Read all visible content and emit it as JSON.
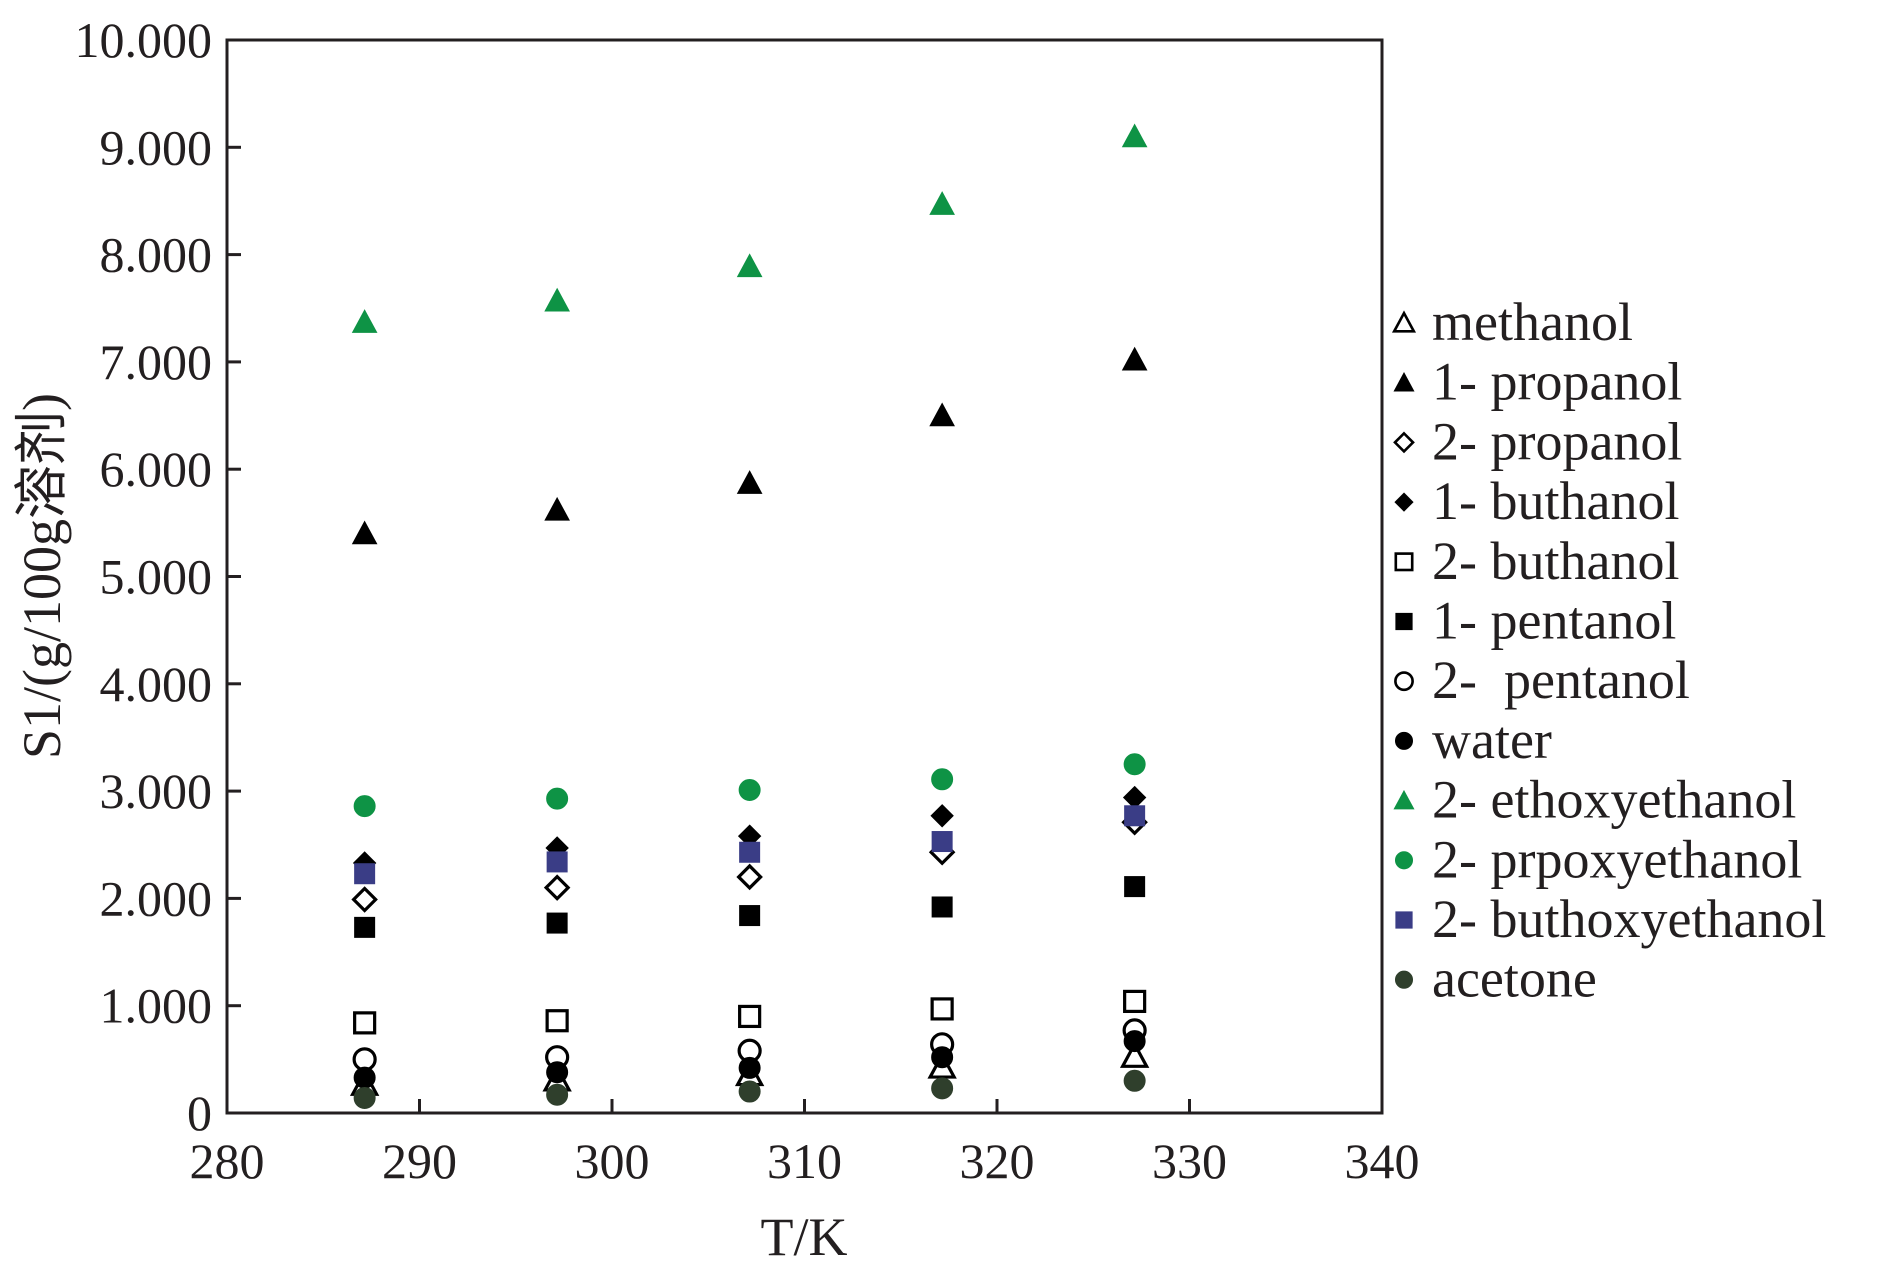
{
  "chart_data": {
    "type": "scatter",
    "xlabel": "T/K",
    "ylabel": "S1/(g/100g溶剂)",
    "xlim": [
      280,
      340
    ],
    "ylim": [
      0,
      10
    ],
    "x_ticks": [
      "280",
      "290",
      "300",
      "310",
      "320",
      "330",
      "340"
    ],
    "y_ticks": [
      "0",
      "1.000",
      "2.000",
      "3.000",
      "4.000",
      "5.000",
      "6.000",
      "7.000",
      "8.000",
      "9.000",
      "10.000"
    ],
    "x": [
      287.15,
      297.15,
      307.15,
      317.15,
      327.15
    ],
    "legend_position": "right",
    "series": [
      {
        "name": "methanol",
        "marker": "triangle-open",
        "color": "#000000",
        "values": [
          0.27,
          0.31,
          0.36,
          0.43,
          0.53
        ]
      },
      {
        "name": "1- propanol",
        "marker": "triangle-filled",
        "color": "#000000",
        "values": [
          5.4,
          5.62,
          5.87,
          6.5,
          7.02
        ]
      },
      {
        "name": "2- propanol",
        "marker": "diamond-open",
        "color": "#000000",
        "values": [
          1.99,
          2.1,
          2.2,
          2.43,
          2.71
        ]
      },
      {
        "name": "1- buthanol",
        "marker": "diamond-filled",
        "color": "#000000",
        "values": [
          2.33,
          2.47,
          2.58,
          2.77,
          2.94
        ]
      },
      {
        "name": "2- buthanol",
        "marker": "square-open",
        "color": "#000000",
        "values": [
          0.84,
          0.86,
          0.9,
          0.97,
          1.04
        ]
      },
      {
        "name": "1- pentanol",
        "marker": "square-filled",
        "color": "#000000",
        "values": [
          1.73,
          1.77,
          1.84,
          1.92,
          2.11
        ]
      },
      {
        "name": "2-  pentanol",
        "marker": "circle-open",
        "color": "#000000",
        "values": [
          0.5,
          0.52,
          0.58,
          0.64,
          0.77
        ]
      },
      {
        "name": "water",
        "marker": "circle-filled",
        "color": "#000000",
        "values": [
          0.33,
          0.38,
          0.42,
          0.52,
          0.67
        ]
      },
      {
        "name": "2- ethoxyethanol",
        "marker": "triangle-filled",
        "color": "#0e9345",
        "values": [
          7.37,
          7.57,
          7.89,
          8.47,
          9.1
        ]
      },
      {
        "name": "2- prpoxyethanol",
        "marker": "circle-filled",
        "color": "#0e9345",
        "values": [
          2.86,
          2.93,
          3.01,
          3.11,
          3.25
        ]
      },
      {
        "name": "2- buthoxyethanol",
        "marker": "square-filled",
        "color": "#3a3d86",
        "values": [
          2.23,
          2.34,
          2.43,
          2.53,
          2.77
        ]
      },
      {
        "name": "acetone",
        "marker": "circle-filled",
        "color": "#2f3f2c",
        "values": [
          0.14,
          0.17,
          0.2,
          0.23,
          0.3
        ]
      }
    ]
  }
}
